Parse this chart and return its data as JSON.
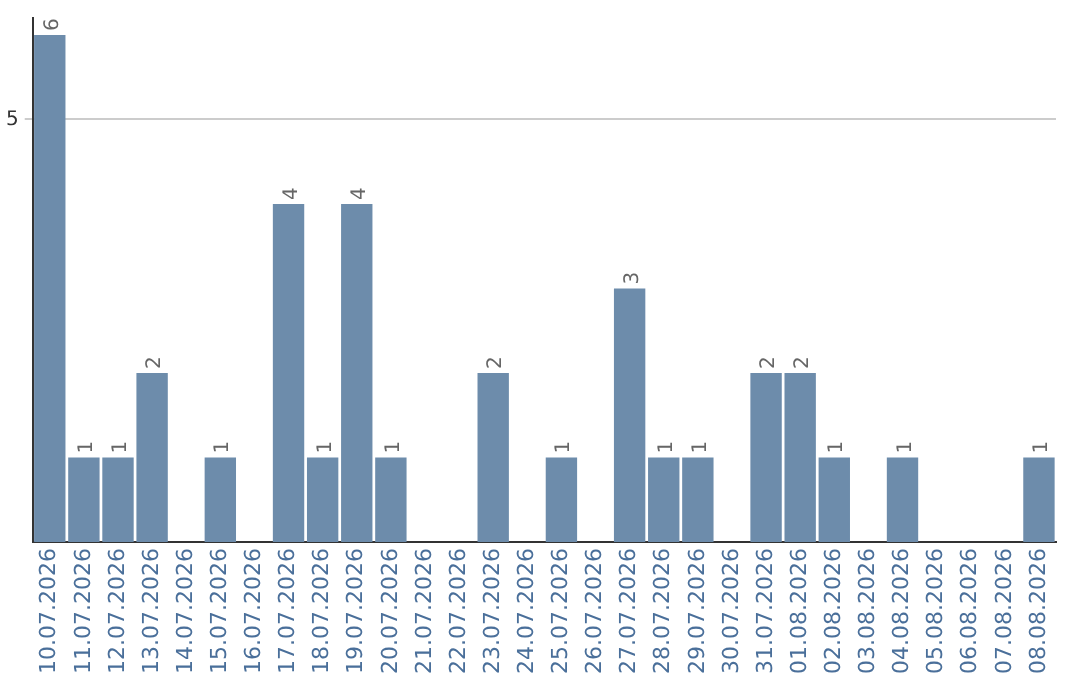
{
  "chart_data": {
    "type": "bar",
    "categories": [
      "10.07.2026",
      "11.07.2026",
      "12.07.2026",
      "13.07.2026",
      "14.07.2026",
      "15.07.2026",
      "16.07.2026",
      "17.07.2026",
      "18.07.2026",
      "19.07.2026",
      "20.07.2026",
      "21.07.2026",
      "22.07.2026",
      "23.07.2026",
      "24.07.2026",
      "25.07.2026",
      "26.07.2026",
      "27.07.2026",
      "28.07.2026",
      "29.07.2026",
      "30.07.2026",
      "31.07.2026",
      "01.08.2026",
      "02.08.2026",
      "03.08.2026",
      "04.08.2026",
      "05.08.2026",
      "06.08.2026",
      "07.08.2026",
      "08.08.2026"
    ],
    "values": [
      6,
      1,
      1,
      2,
      0,
      1,
      0,
      4,
      1,
      4,
      1,
      0,
      0,
      2,
      0,
      1,
      0,
      3,
      1,
      1,
      0,
      2,
      2,
      1,
      0,
      1,
      0,
      0,
      0,
      1
    ],
    "value_labels": [
      "6",
      "1",
      "1",
      "2",
      null,
      "1",
      null,
      "4",
      "1",
      "4",
      "1",
      null,
      null,
      "2",
      null,
      "1",
      null,
      "3",
      "1",
      "1",
      null,
      "2",
      "2",
      "1",
      null,
      "1",
      null,
      null,
      null,
      "1"
    ],
    "color": "#6d8cab",
    "ylim": [
      0,
      6.2
    ],
    "yticks": [
      5
    ],
    "grid": "y",
    "legend": false
  }
}
